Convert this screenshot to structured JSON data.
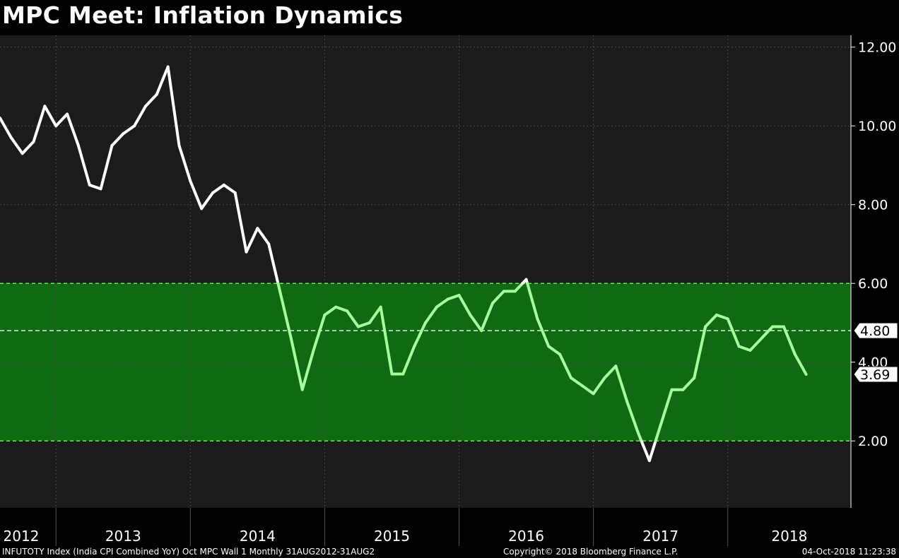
{
  "chart_data": {
    "type": "line",
    "title": "MPC Meet: Inflation Dynamics",
    "y_ticks": [
      "12.00",
      "10.00",
      "8.00",
      "6.00",
      "4.00",
      "2.00"
    ],
    "ylim": [
      0.3,
      12.3
    ],
    "x_labels": [
      "2012",
      "2013",
      "2014",
      "2015",
      "2016",
      "2017",
      "2018"
    ],
    "xlim": [
      "2012-08",
      "2018-12"
    ],
    "target_band": {
      "lower": 2.0,
      "upper": 6.0,
      "target": 4.8
    },
    "highlights": [
      {
        "label": "4.80",
        "value": 4.8,
        "style": "white"
      },
      {
        "label": "3.69",
        "value": 3.69,
        "style": "white"
      }
    ],
    "line_color": "#ffffff",
    "band_color": "#0f6b12",
    "in_band_line_color": "#a6ff9c",
    "series": [
      {
        "dates": [
          "2012-08",
          "2012-09",
          "2012-10",
          "2012-11",
          "2012-12",
          "2013-01",
          "2013-02",
          "2013-03",
          "2013-04",
          "2013-05",
          "2013-06",
          "2013-07",
          "2013-08",
          "2013-09",
          "2013-10",
          "2013-11",
          "2013-12",
          "2014-01",
          "2014-02",
          "2014-03",
          "2014-04",
          "2014-05",
          "2014-06",
          "2014-07",
          "2014-08",
          "2014-09",
          "2014-10",
          "2014-11",
          "2014-12",
          "2015-01",
          "2015-02",
          "2015-03",
          "2015-04",
          "2015-05",
          "2015-06",
          "2015-07",
          "2015-08",
          "2015-09",
          "2015-10",
          "2015-11",
          "2015-12",
          "2016-01",
          "2016-02",
          "2016-03",
          "2016-04",
          "2016-05",
          "2016-06",
          "2016-07",
          "2016-08",
          "2016-09",
          "2016-10",
          "2016-11",
          "2016-12",
          "2017-01",
          "2017-02",
          "2017-03",
          "2017-04",
          "2017-05",
          "2017-06",
          "2017-07",
          "2017-08",
          "2017-09",
          "2017-10",
          "2017-11",
          "2017-12",
          "2018-01",
          "2018-02",
          "2018-03",
          "2018-04",
          "2018-05",
          "2018-06",
          "2018-07",
          "2018-08"
        ],
        "values": [
          10.2,
          9.7,
          9.3,
          9.6,
          10.5,
          10.0,
          10.3,
          9.5,
          8.5,
          8.4,
          9.5,
          9.8,
          10.0,
          10.5,
          10.8,
          11.5,
          9.5,
          8.6,
          7.9,
          8.3,
          8.5,
          8.3,
          6.8,
          7.4,
          7.0,
          5.8,
          4.6,
          3.3,
          4.3,
          5.2,
          5.4,
          5.3,
          4.9,
          5.0,
          5.4,
          3.7,
          3.7,
          4.4,
          5.0,
          5.4,
          5.6,
          5.7,
          5.2,
          4.8,
          5.5,
          5.8,
          5.8,
          6.1,
          5.1,
          4.4,
          4.2,
          3.6,
          3.4,
          3.2,
          3.6,
          3.9,
          3.0,
          2.2,
          1.5,
          2.4,
          3.3,
          3.3,
          3.6,
          4.9,
          5.2,
          5.1,
          4.4,
          4.3,
          4.6,
          4.9,
          4.9,
          4.2,
          3.69
        ]
      }
    ]
  },
  "footer": {
    "left": "INFUTOTY Index (India CPI Combined YoY) Oct MPC Wall 1  Monthly 31AUG2012-31AUG2",
    "middle": "Copyright© 2018 Bloomberg Finance L.P.",
    "right": "04-Oct-2018 11:23:38"
  }
}
